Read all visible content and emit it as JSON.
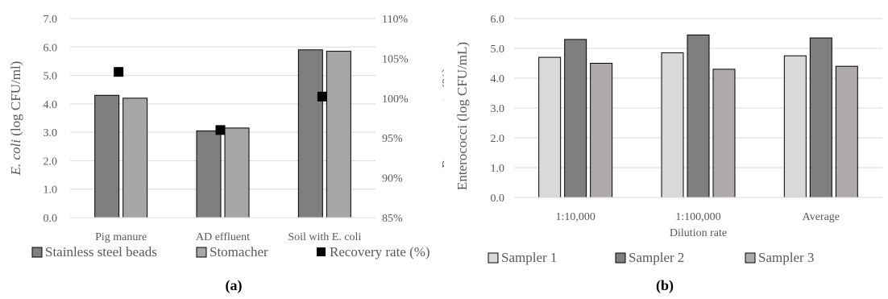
{
  "chart_data": [
    {
      "type": "bar",
      "panel_label": "(a)",
      "categories": [
        "Pig manure",
        "AD effluent",
        "Soil with E. coli"
      ],
      "series": [
        {
          "name": "Stainless steel beads",
          "values": [
            4.3,
            3.05,
            5.9
          ],
          "color": "#7f7f7f"
        },
        {
          "name": "Stomacher",
          "values": [
            4.2,
            3.15,
            5.85
          ],
          "color": "#a6a6a6"
        }
      ],
      "secondary_series": {
        "name": "Recovery rate (%)",
        "type": "scatter",
        "values": [
          103.3,
          96.0,
          100.2
        ],
        "color": "#000000"
      },
      "ylabel": "(log CFU/ml)",
      "ylabel_italic": "E. coli",
      "y2label": "Recovery rate (%)",
      "ylim": [
        0,
        7
      ],
      "y2lim": [
        85,
        110
      ],
      "yticks": [
        "0.0",
        "1.0",
        "2.0",
        "3.0",
        "4.0",
        "5.0",
        "6.0",
        "7.0"
      ],
      "y2ticks": [
        "85%",
        "90%",
        "95%",
        "100%",
        "105%",
        "110%"
      ],
      "grid": true,
      "legend_position": "bottom"
    },
    {
      "type": "bar",
      "panel_label": "(b)",
      "categories": [
        "1:10,000",
        "1:100,000",
        "Average"
      ],
      "series": [
        {
          "name": "Sampler 1",
          "values": [
            4.7,
            4.85,
            4.75
          ],
          "color": "#d9d9d9"
        },
        {
          "name": "Sampler 2",
          "values": [
            5.3,
            5.45,
            5.35
          ],
          "color": "#7f7f7f"
        },
        {
          "name": "Sampler 3",
          "values": [
            4.5,
            4.3,
            4.4
          ],
          "color": "#aeaaaa"
        }
      ],
      "xlabel": "Dilution rate",
      "ylabel": "Enterococci (log CFU/mL)",
      "ylim": [
        0,
        6
      ],
      "yticks": [
        "0.0",
        "1.0",
        "2.0",
        "3.0",
        "4.0",
        "5.0",
        "6.0"
      ],
      "grid": true,
      "legend_position": "bottom"
    }
  ]
}
